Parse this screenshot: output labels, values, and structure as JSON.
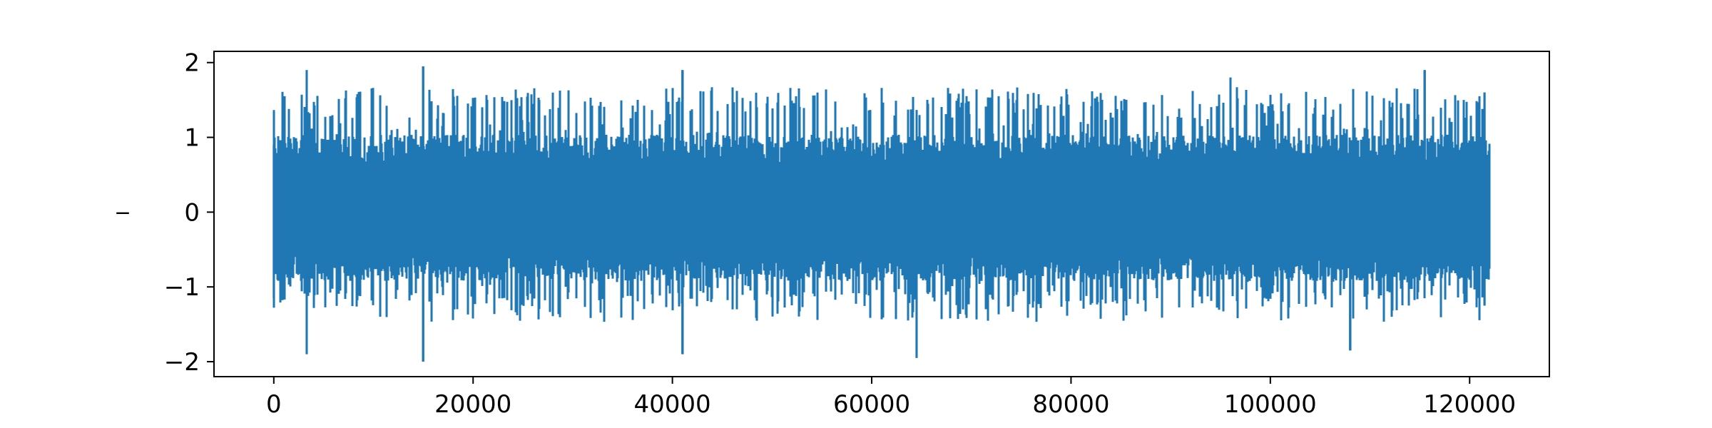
{
  "chart_data": {
    "type": "line",
    "title": "",
    "xlabel": "",
    "ylabel": "_",
    "xlim": [
      -6000,
      128000
    ],
    "ylim": [
      -2.2,
      2.15
    ],
    "x_ticks": [
      0,
      20000,
      40000,
      60000,
      80000,
      100000,
      120000
    ],
    "x_tick_labels": [
      "0",
      "20000",
      "40000",
      "60000",
      "80000",
      "100000",
      "120000"
    ],
    "y_ticks": [
      -2,
      -1,
      0,
      1,
      2
    ],
    "y_tick_labels": [
      "−2",
      "−1",
      "0",
      "1",
      "2"
    ],
    "grid": false,
    "legend": "none",
    "series": [
      {
        "color": "#1f77b4",
        "x_range": [
          0,
          122000
        ],
        "approx_envelope": {
          "dense_band": [
            -0.8,
            0.9
          ],
          "typical_peaks": [
            -1.4,
            1.6
          ],
          "max": 1.95,
          "min": -2.0
        },
        "notable_extrema": [
          {
            "x": 0,
            "y": 0.9
          },
          {
            "x": 0,
            "y": -1.15
          },
          {
            "x": 3300,
            "y": 1.9
          },
          {
            "x": 3300,
            "y": -1.9
          },
          {
            "x": 15000,
            "y": 1.95
          },
          {
            "x": 15000,
            "y": -2.0
          },
          {
            "x": 41000,
            "y": 1.9
          },
          {
            "x": 41000,
            "y": -1.9
          },
          {
            "x": 64500,
            "y": -1.95
          },
          {
            "x": 96000,
            "y": 1.8
          },
          {
            "x": 108000,
            "y": -1.85
          },
          {
            "x": 115500,
            "y": 1.9
          },
          {
            "x": 121500,
            "y": 1.6
          },
          {
            "x": 121500,
            "y": -1.25
          }
        ]
      }
    ]
  }
}
